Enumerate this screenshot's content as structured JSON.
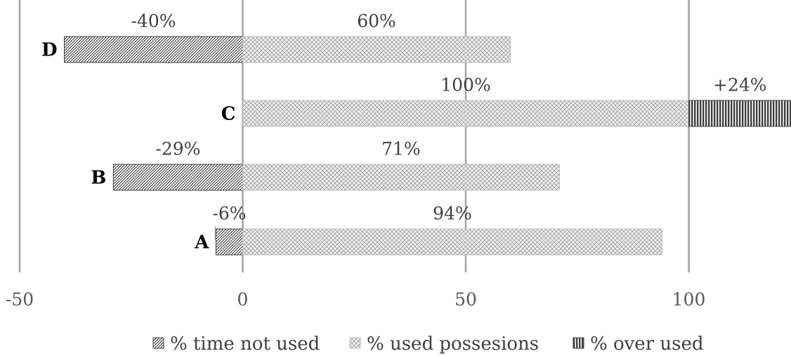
{
  "chart_data": {
    "type": "bar",
    "orientation": "horizontal",
    "stacked": true,
    "categories": [
      "A",
      "B",
      "C",
      "D"
    ],
    "series": [
      {
        "name": "% time not used",
        "values": [
          -6,
          -29,
          0,
          -40
        ],
        "labels": [
          "-6%",
          "-29%",
          "",
          "-40%"
        ],
        "pattern": "diagonal"
      },
      {
        "name": "% used possesions",
        "values": [
          94,
          71,
          100,
          60
        ],
        "labels": [
          "94%",
          "71%",
          "100%",
          "60%"
        ],
        "pattern": "crosshatch"
      },
      {
        "name": "% over used",
        "values": [
          0,
          0,
          24,
          0
        ],
        "labels": [
          "",
          "",
          "+24%",
          ""
        ],
        "pattern": "vertical"
      }
    ],
    "xticks": [
      -50,
      0,
      50,
      100
    ],
    "xlim": [
      -50,
      123
    ],
    "grid": true,
    "legend": "bottom",
    "colors": {
      "gridline": "#a6a6a6",
      "dark": "#595959",
      "light": "#bfbfbf",
      "text": "#404040"
    }
  }
}
